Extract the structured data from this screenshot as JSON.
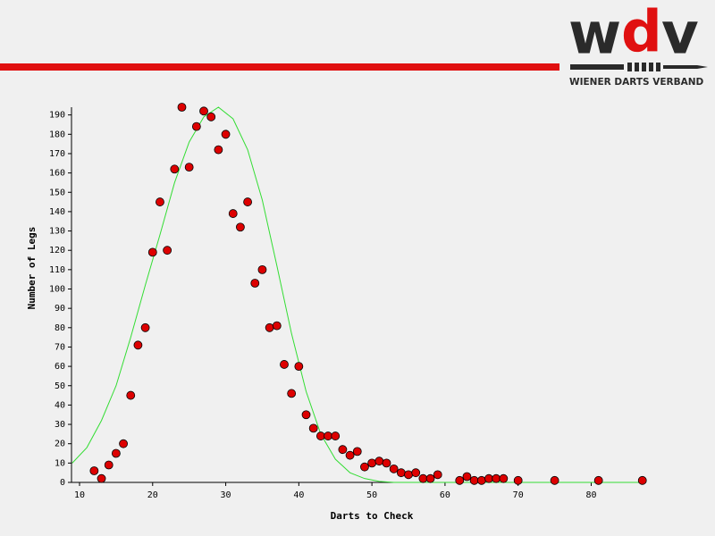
{
  "logo": {
    "letters": [
      "w",
      "d",
      "v"
    ],
    "tagline": "WIENER DARTS VERBAND"
  },
  "chart_data": {
    "type": "scatter",
    "xlabel": "Darts to Check",
    "ylabel": "Number of Legs",
    "xlim": [
      8.9,
      87.4
    ],
    "ylim": [
      0,
      194
    ],
    "xticks": [
      10,
      20,
      30,
      40,
      50,
      60,
      70,
      80
    ],
    "yticks": [
      0,
      10,
      20,
      30,
      40,
      50,
      60,
      70,
      80,
      90,
      100,
      110,
      120,
      130,
      140,
      150,
      160,
      170,
      180,
      190
    ],
    "series": [
      {
        "type": "line",
        "color": "#33dd33",
        "x": [
          9,
          11,
          13,
          15,
          17,
          19,
          21,
          23,
          25,
          27,
          29,
          31,
          33,
          35,
          37,
          39,
          41,
          43,
          45,
          47,
          49,
          51,
          53,
          87
        ],
        "values": [
          10,
          18,
          32,
          50,
          75,
          102,
          128,
          155,
          176,
          189,
          194,
          188,
          172,
          146,
          112,
          77,
          47,
          25,
          12,
          5,
          2,
          0.5,
          0,
          0
        ]
      },
      {
        "type": "scatter",
        "color": "#dd0000",
        "x": [
          12,
          13,
          14,
          15,
          16,
          17,
          18,
          19,
          20,
          21,
          22,
          23,
          24,
          25,
          26,
          27,
          28,
          29,
          30,
          31,
          32,
          33,
          34,
          35,
          36,
          37,
          38,
          39,
          40,
          41,
          42,
          43,
          44,
          45,
          46,
          47,
          48,
          49,
          50,
          51,
          52,
          53,
          54,
          55,
          56,
          57,
          58,
          59,
          62,
          63,
          64,
          65,
          66,
          67,
          68,
          70,
          75,
          81,
          87
        ],
        "values": [
          6,
          2,
          9,
          15,
          20,
          45,
          71,
          80,
          119,
          145,
          120,
          162,
          194,
          163,
          184,
          192,
          189,
          172,
          180,
          139,
          132,
          145,
          103,
          110,
          80,
          81,
          61,
          46,
          60,
          35,
          28,
          24,
          24,
          24,
          17,
          14,
          16,
          8,
          10,
          11,
          10,
          7,
          5,
          4,
          5,
          2,
          2,
          4,
          1,
          3,
          1,
          1,
          2,
          2,
          2,
          1,
          1,
          1,
          1
        ]
      }
    ]
  }
}
